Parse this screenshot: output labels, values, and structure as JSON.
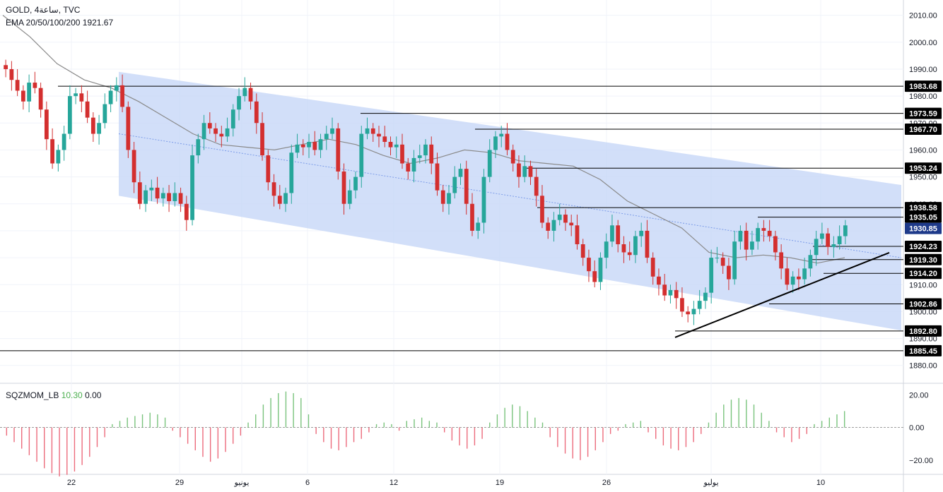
{
  "header": {
    "symbol": "GOLD",
    "interval": "4ساعة",
    "source": "TVC",
    "indicator_name": "EMA 20/50/100/200",
    "indicator_value": "1921.67"
  },
  "colors": {
    "bull": "#26a69a",
    "bear": "#d32f2f",
    "channel_fill": "#c7d7f7",
    "ema": "#8a8a8a",
    "hist_pos": "#4caf50",
    "hist_neg": "#e53950",
    "last_price_bg": "#1e3a8a"
  },
  "chart_data": [
    {
      "type": "candlestick",
      "title": "GOLD, 4ساعة, TVC",
      "ylim": [
        1876,
        2012
      ],
      "y_ticks": [
        "2010.00",
        "2000.00",
        "1990.00",
        "1980.00",
        "1970.00",
        "1960.00",
        "1950.00",
        "1940.00",
        "1930.00",
        "1920.00",
        "1910.00",
        "1900.00",
        "1890.00",
        "1880.00"
      ],
      "x_ticks": [
        "22",
        "29",
        "يونيو",
        "6",
        "12",
        "19",
        "26",
        "يوليو",
        "10"
      ],
      "price_levels": [
        {
          "label": "1983.68",
          "value": 1983.68
        },
        {
          "label": "1973.59",
          "value": 1973.59
        },
        {
          "label": "1967.70",
          "value": 1967.7
        },
        {
          "label": "1953.24",
          "value": 1953.24
        },
        {
          "label": "1938.58",
          "value": 1938.58
        },
        {
          "label": "1935.05",
          "value": 1935.05
        },
        {
          "label": "1924.23",
          "value": 1924.23
        },
        {
          "label": "1919.30",
          "value": 1919.3
        },
        {
          "label": "1914.20",
          "value": 1914.2
        },
        {
          "label": "1902.86",
          "value": 1902.86
        },
        {
          "label": "1892.80",
          "value": 1892.8
        },
        {
          "label": "1885.45",
          "value": 1885.45
        }
      ],
      "last_price": {
        "label": "1930.85",
        "value": 1930.85
      },
      "channel": {
        "upper": [
          1989,
          1947
        ],
        "lower": [
          1943,
          1893
        ],
        "mid": [
          1966,
          1920
        ]
      },
      "trendline": [
        1892,
        1914
      ],
      "ema_values": [
        2010,
        2002,
        1992,
        1986,
        1983,
        1978,
        1972,
        1966,
        1962,
        1961,
        1960,
        1962,
        1964,
        1962,
        1958,
        1955,
        1957,
        1960,
        1959,
        1956,
        1955,
        1954,
        1949,
        1941,
        1936,
        1931,
        1922,
        1920,
        1921,
        1920,
        1918,
        1920
      ],
      "closes": [
        1990,
        1986,
        1982,
        1978,
        1985,
        1983,
        1975,
        1964,
        1955,
        1960,
        1966,
        1980,
        1981,
        1978,
        1972,
        1966,
        1970,
        1977,
        1982,
        1984,
        1976,
        1960,
        1948,
        1940,
        1945,
        1946,
        1942,
        1944,
        1941,
        1944,
        1940,
        1934,
        1958,
        1964,
        1970,
        1968,
        1966,
        1965,
        1968,
        1975,
        1980,
        1983,
        1978,
        1970,
        1958,
        1948,
        1943,
        1940,
        1944,
        1959,
        1962,
        1961,
        1963,
        1960,
        1964,
        1966,
        1968,
        1952,
        1940,
        1945,
        1950,
        1966,
        1968,
        1966,
        1965,
        1963,
        1961,
        1962,
        1955,
        1952,
        1957,
        1958,
        1962,
        1955,
        1945,
        1940,
        1944,
        1950,
        1953,
        1940,
        1930,
        1933,
        1950,
        1960,
        1965,
        1966,
        1960,
        1955,
        1950,
        1954,
        1950,
        1943,
        1933,
        1930,
        1934,
        1936,
        1933,
        1932,
        1925,
        1920,
        1915,
        1911,
        1920,
        1926,
        1932,
        1925,
        1922,
        1921,
        1928,
        1930,
        1920,
        1913,
        1910,
        1906,
        1908,
        1905,
        1900,
        1899,
        1901,
        1904,
        1907,
        1920,
        1920,
        1917,
        1912,
        1926,
        1930,
        1923,
        1926,
        1931,
        1930,
        1928,
        1922,
        1916,
        1910,
        1913,
        1912,
        1916,
        1921,
        1927,
        1929,
        1924,
        1925,
        1928,
        1932
      ]
    },
    {
      "type": "bar",
      "title": "SQZMOM_LB",
      "indicator_name": "SQZMOM_LB",
      "value_1": "10.30",
      "value_2": "0.00",
      "ylim": [
        -27,
        24
      ],
      "y_ticks": [
        "20.00",
        "0.00",
        "−20.00"
      ],
      "values": [
        -5,
        -9,
        -13,
        -17,
        -21,
        -25,
        -28,
        -30,
        -29,
        -27,
        -23,
        -18,
        -12,
        -6,
        2,
        4,
        6,
        7,
        8,
        9,
        8,
        6,
        -2,
        -6,
        -10,
        -14,
        -18,
        -21,
        -19,
        -15,
        -10,
        -5,
        3,
        8,
        14,
        18,
        21,
        22,
        21,
        18,
        8,
        -4,
        -9,
        -13,
        -14,
        -12,
        -9,
        -7,
        -3,
        2,
        3,
        2,
        -2,
        4,
        5,
        6,
        4,
        3,
        -3,
        -8,
        -11,
        -13,
        -11,
        -7,
        3,
        8,
        12,
        14,
        13,
        10,
        6,
        3,
        -6,
        -12,
        -16,
        -19,
        -20,
        -18,
        -14,
        -9,
        -4,
        -2,
        2,
        3,
        4,
        -3,
        -7,
        -11,
        -13,
        -14,
        -12,
        -9,
        -4,
        3,
        9,
        14,
        17,
        18,
        17,
        14,
        9,
        4,
        -3,
        -6,
        -9,
        -7,
        -4,
        2,
        4,
        6,
        8,
        10
      ]
    }
  ]
}
